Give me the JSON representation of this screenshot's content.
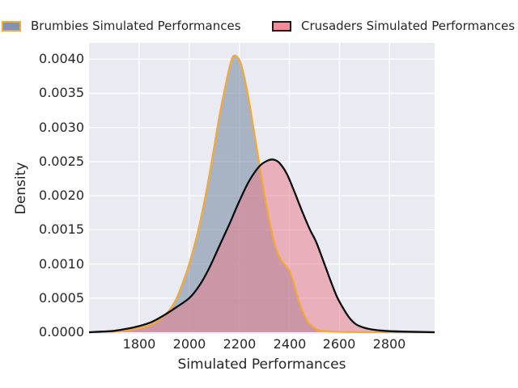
{
  "colors": {
    "figure_bg": "#FFFFFF",
    "plot_bg": "#EAEAF2",
    "grid": "#FFFFFF",
    "text": "#262626"
  },
  "legend": {
    "position": "top",
    "items": [
      {
        "label": "Brumbies Simulated Performances",
        "fill": "#8094AB",
        "edge": "#F2A93B"
      },
      {
        "label": "Crusaders Simulated Performances",
        "fill": "#F08D9B",
        "edge": "#1A1A1A"
      }
    ]
  },
  "chart_data": {
    "type": "area",
    "subtype": "kde-density",
    "title": "",
    "xlabel": "Simulated Performances",
    "ylabel": "Density",
    "xlim": [
      1600,
      2980
    ],
    "ylim": [
      0,
      0.00424
    ],
    "grid": true,
    "legend_position": "top",
    "xtick_values": [
      1800,
      2000,
      2200,
      2400,
      2600,
      2800
    ],
    "xtick_labels": [
      "1800",
      "2000",
      "2200",
      "2400",
      "2600",
      "2800"
    ],
    "ytick_values": [
      0,
      0.0005,
      0.001,
      0.0015,
      0.002,
      0.0025,
      0.003,
      0.0035,
      0.004
    ],
    "ytick_labels": [
      "0.0000",
      "0.0005",
      "0.0010",
      "0.0015",
      "0.0020",
      "0.0025",
      "0.0030",
      "0.0035",
      "0.0040"
    ],
    "series": [
      {
        "name": "Brumbies Simulated Performances",
        "fill_color": "#7F92A8",
        "fill_alpha": 0.62,
        "edge_color": "#F2A93B",
        "points": [
          [
            1600,
            0
          ],
          [
            1660,
            5e-06
          ],
          [
            1700,
            1e-05
          ],
          [
            1750,
            3e-05
          ],
          [
            1800,
            6e-05
          ],
          [
            1840,
            0.0001
          ],
          [
            1880,
            0.00018
          ],
          [
            1920,
            0.00032
          ],
          [
            1950,
            0.0005
          ],
          [
            1980,
            0.00078
          ],
          [
            2000,
            0.001
          ],
          [
            2030,
            0.0014
          ],
          [
            2060,
            0.0019
          ],
          [
            2090,
            0.0025
          ],
          [
            2120,
            0.00315
          ],
          [
            2150,
            0.0037
          ],
          [
            2170,
            0.004
          ],
          [
            2185,
            0.00405
          ],
          [
            2205,
            0.00395
          ],
          [
            2225,
            0.00365
          ],
          [
            2245,
            0.00325
          ],
          [
            2265,
            0.0028
          ],
          [
            2285,
            0.00235
          ],
          [
            2305,
            0.00192
          ],
          [
            2325,
            0.00155
          ],
          [
            2345,
            0.00125
          ],
          [
            2365,
            0.00107
          ],
          [
            2385,
            0.00098
          ],
          [
            2400,
            0.0009
          ],
          [
            2415,
            0.00075
          ],
          [
            2430,
            0.00055
          ],
          [
            2445,
            0.00038
          ],
          [
            2460,
            0.00025
          ],
          [
            2475,
            0.00015
          ],
          [
            2495,
            8e-05
          ],
          [
            2515,
            3e-05
          ],
          [
            2545,
            1.5e-05
          ],
          [
            2590,
            8e-06
          ],
          [
            2650,
            4e-06
          ],
          [
            2750,
            2e-06
          ],
          [
            2980,
            0
          ]
        ]
      },
      {
        "name": "Crusaders Simulated Performances",
        "fill_color": "#E8808F",
        "fill_alpha": 0.55,
        "edge_color": "#0D0D0D",
        "points": [
          [
            1600,
            0
          ],
          [
            1650,
            1e-05
          ],
          [
            1700,
            2e-05
          ],
          [
            1750,
            5e-05
          ],
          [
            1800,
            9e-05
          ],
          [
            1850,
            0.00015
          ],
          [
            1900,
            0.00025
          ],
          [
            1950,
            0.00037
          ],
          [
            2000,
            0.0005
          ],
          [
            2040,
            0.00068
          ],
          [
            2080,
            0.00094
          ],
          [
            2120,
            0.00126
          ],
          [
            2160,
            0.00158
          ],
          [
            2200,
            0.00192
          ],
          [
            2240,
            0.00222
          ],
          [
            2280,
            0.00243
          ],
          [
            2310,
            0.00251
          ],
          [
            2335,
            0.00253
          ],
          [
            2360,
            0.00248
          ],
          [
            2390,
            0.00232
          ],
          [
            2420,
            0.00206
          ],
          [
            2450,
            0.00178
          ],
          [
            2480,
            0.00152
          ],
          [
            2505,
            0.00134
          ],
          [
            2525,
            0.00115
          ],
          [
            2545,
            0.00095
          ],
          [
            2565,
            0.00075
          ],
          [
            2590,
            0.00052
          ],
          [
            2615,
            0.00035
          ],
          [
            2640,
            0.00021
          ],
          [
            2665,
            0.00012
          ],
          [
            2695,
            7e-05
          ],
          [
            2730,
            4e-05
          ],
          [
            2780,
            2e-05
          ],
          [
            2850,
            1e-05
          ],
          [
            2980,
            0
          ]
        ]
      }
    ]
  }
}
